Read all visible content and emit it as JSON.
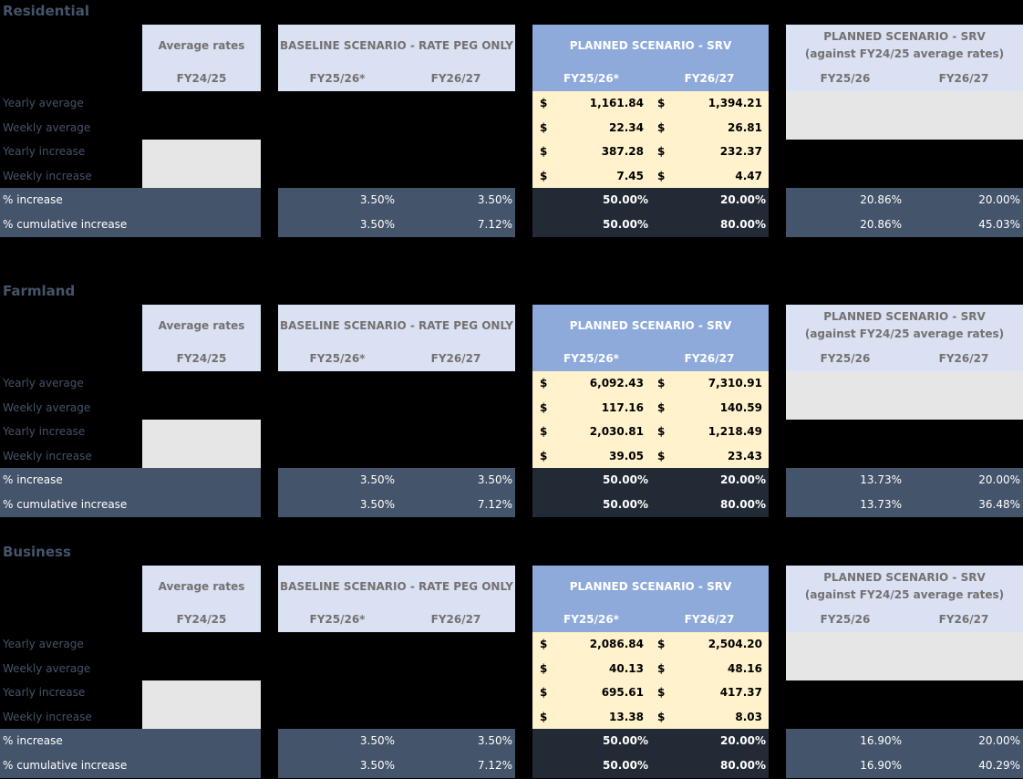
{
  "sections": [
    {
      "title": "Residential",
      "avg_rates_label": "Average rates",
      "avg_year": "FY24/25",
      "baseline_title": "BASELINE SCENARIO - RATE PEG ONLY",
      "baseline_years": [
        "FY25/26*",
        "FY26/27"
      ],
      "planned_title": "PLANNED SCENARIO - SRV",
      "planned_years": [
        "FY25/26*",
        "FY26/27"
      ],
      "planned2_title_1": "PLANNED SCENARIO - SRV",
      "planned2_title_2": "(against FY24/25 average rates)",
      "planned2_years": [
        "FY25/26",
        "FY26/27"
      ],
      "rows": [
        "Yearly average",
        "Weekly average",
        "Yearly increase",
        "Weekly increase",
        "% increase",
        "% cumulative increase"
      ],
      "currency": "$",
      "planned_values": [
        [
          "1,161.84",
          "1,394.21"
        ],
        [
          "22.34",
          "26.81"
        ],
        [
          "387.28",
          "232.37"
        ],
        [
          "7.45",
          "4.47"
        ]
      ],
      "baseline_pct": [
        [
          "3.50%",
          "3.50%"
        ],
        [
          "3.50%",
          "7.12%"
        ]
      ],
      "planned_pct": [
        [
          "50.00%",
          "20.00%"
        ],
        [
          "50.00%",
          "80.00%"
        ]
      ],
      "planned2_pct": [
        [
          "20.86%",
          "20.00%"
        ],
        [
          "20.86%",
          "45.03%"
        ]
      ]
    },
    {
      "title": "Farmland",
      "avg_rates_label": "Average rates",
      "avg_year": "FY24/25",
      "baseline_title": "BASELINE SCENARIO - RATE PEG ONLY",
      "baseline_years": [
        "FY25/26*",
        "FY26/27"
      ],
      "planned_title": "PLANNED SCENARIO - SRV",
      "planned_years": [
        "FY25/26*",
        "FY26/27"
      ],
      "planned2_title_1": "PLANNED SCENARIO - SRV",
      "planned2_title_2": "(against FY24/25 average rates)",
      "planned2_years": [
        "FY25/26",
        "FY26/27"
      ],
      "rows": [
        "Yearly average",
        "Weekly average",
        "Yearly increase",
        "Weekly increase",
        "% increase",
        "% cumulative increase"
      ],
      "currency": "$",
      "planned_values": [
        [
          "6,092.43",
          "7,310.91"
        ],
        [
          "117.16",
          "140.59"
        ],
        [
          "2,030.81",
          "1,218.49"
        ],
        [
          "39.05",
          "23.43"
        ]
      ],
      "baseline_pct": [
        [
          "3.50%",
          "3.50%"
        ],
        [
          "3.50%",
          "7.12%"
        ]
      ],
      "planned_pct": [
        [
          "50.00%",
          "20.00%"
        ],
        [
          "50.00%",
          "80.00%"
        ]
      ],
      "planned2_pct": [
        [
          "13.73%",
          "20.00%"
        ],
        [
          "13.73%",
          "36.48%"
        ]
      ]
    },
    {
      "title": "Business",
      "avg_rates_label": "Average rates",
      "avg_year": "FY24/25",
      "baseline_title": "BASELINE SCENARIO - RATE PEG ONLY",
      "baseline_years": [
        "FY25/26*",
        "FY26/27"
      ],
      "planned_title": "PLANNED SCENARIO - SRV",
      "planned_years": [
        "FY25/26*",
        "FY26/27"
      ],
      "planned2_title_1": "PLANNED SCENARIO - SRV",
      "planned2_title_2": "(against FY24/25 average rates)",
      "planned2_years": [
        "FY25/26",
        "FY26/27"
      ],
      "rows": [
        "Yearly average",
        "Weekly average",
        "Yearly increase",
        "Weekly increase",
        "% increase",
        "% cumulative increase"
      ],
      "currency": "$",
      "planned_values": [
        [
          "2,086.84",
          "2,504.20"
        ],
        [
          "40.13",
          "48.16"
        ],
        [
          "695.61",
          "417.37"
        ],
        [
          "13.38",
          "8.03"
        ]
      ],
      "baseline_pct": [
        [
          "3.50%",
          "3.50%"
        ],
        [
          "3.50%",
          "7.12%"
        ]
      ],
      "planned_pct": [
        [
          "50.00%",
          "20.00%"
        ],
        [
          "50.00%",
          "80.00%"
        ]
      ],
      "planned2_pct": [
        [
          "16.90%",
          "20.00%"
        ],
        [
          "16.90%",
          "40.29%"
        ]
      ]
    }
  ]
}
